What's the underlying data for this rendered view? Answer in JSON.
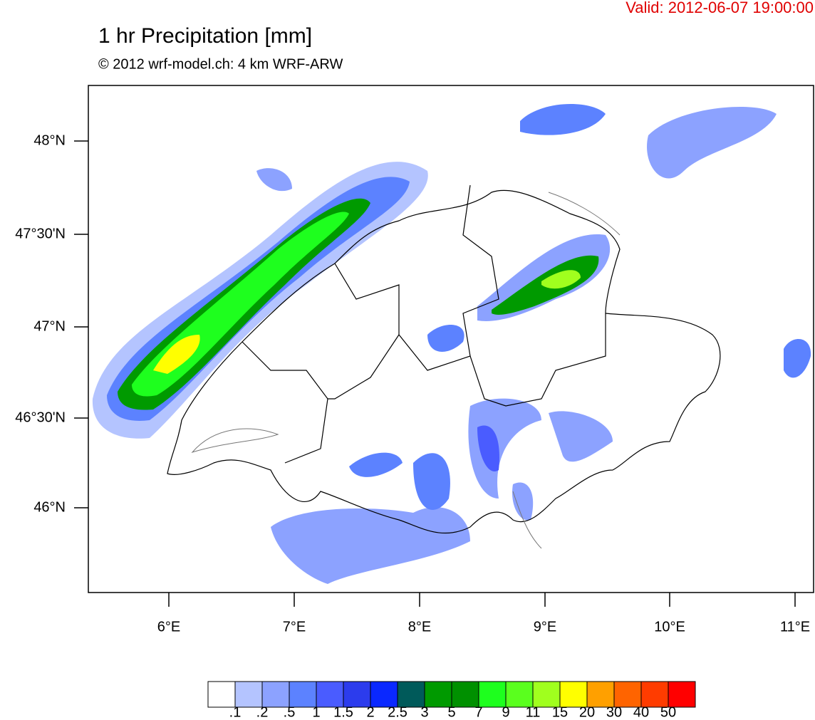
{
  "header": {
    "valid": "Valid: 2012-06-07 19:00:00",
    "title": "1 hr Precipitation [mm]",
    "subtitle": "© 2012 wrf-model.ch: 4 km WRF-ARW"
  },
  "map": {
    "lat_labels": [
      "48°N",
      "47°30'N",
      "47°N",
      "46°30'N",
      "46°N"
    ],
    "lon_labels": [
      "6°E",
      "7°E",
      "8°E",
      "9°E",
      "10°E",
      "11°E"
    ]
  },
  "colorbar": {
    "colors": [
      "#ffffff",
      "#b4c4ff",
      "#8ca2ff",
      "#5c82ff",
      "#4a5cff",
      "#2c3ced",
      "#0a28ff",
      "#005a5a",
      "#009a00",
      "#009000",
      "#1eff1e",
      "#5aff1e",
      "#a0ff1e",
      "#ffff00",
      "#ffa000",
      "#ff6400",
      "#ff3c00",
      "#ff0000"
    ],
    "labels": [
      ".1",
      ".2",
      ".5",
      "1",
      "1.5",
      "2",
      "2.5",
      "3",
      "5",
      "7",
      "9",
      "11",
      "15",
      "20",
      "30",
      "40",
      "50"
    ]
  }
}
